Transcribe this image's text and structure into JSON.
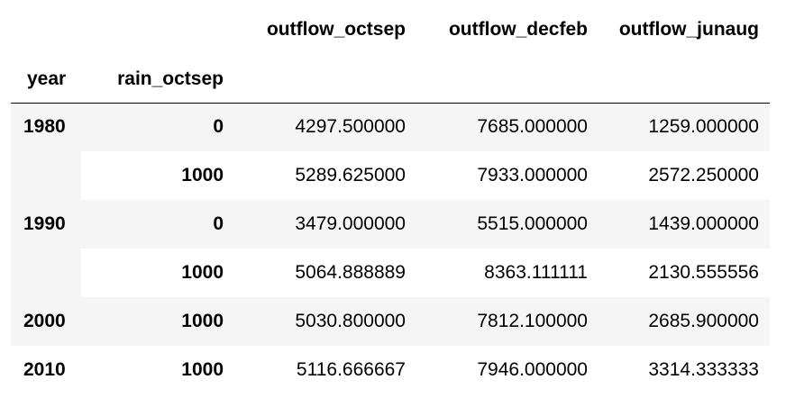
{
  "columns": {
    "index_names": [
      "year",
      "rain_octsep"
    ],
    "values": [
      "outflow_octsep",
      "outflow_decfeb",
      "outflow_junaug"
    ]
  },
  "rows": [
    {
      "year": "1980",
      "rain": "0",
      "values": [
        "4297.500000",
        "7685.000000",
        "1259.000000"
      ]
    },
    {
      "year": "",
      "rain": "1000",
      "values": [
        "5289.625000",
        "7933.000000",
        "2572.250000"
      ]
    },
    {
      "year": "1990",
      "rain": "0",
      "values": [
        "3479.000000",
        "5515.000000",
        "1439.000000"
      ]
    },
    {
      "year": "",
      "rain": "1000",
      "values": [
        "5064.888889",
        "8363.111111",
        "2130.555556"
      ]
    },
    {
      "year": "2000",
      "rain": "1000",
      "values": [
        "5030.800000",
        "7812.100000",
        "2685.900000"
      ]
    },
    {
      "year": "2010",
      "rain": "1000",
      "values": [
        "5116.666667",
        "7946.000000",
        "3314.333333"
      ]
    }
  ]
}
